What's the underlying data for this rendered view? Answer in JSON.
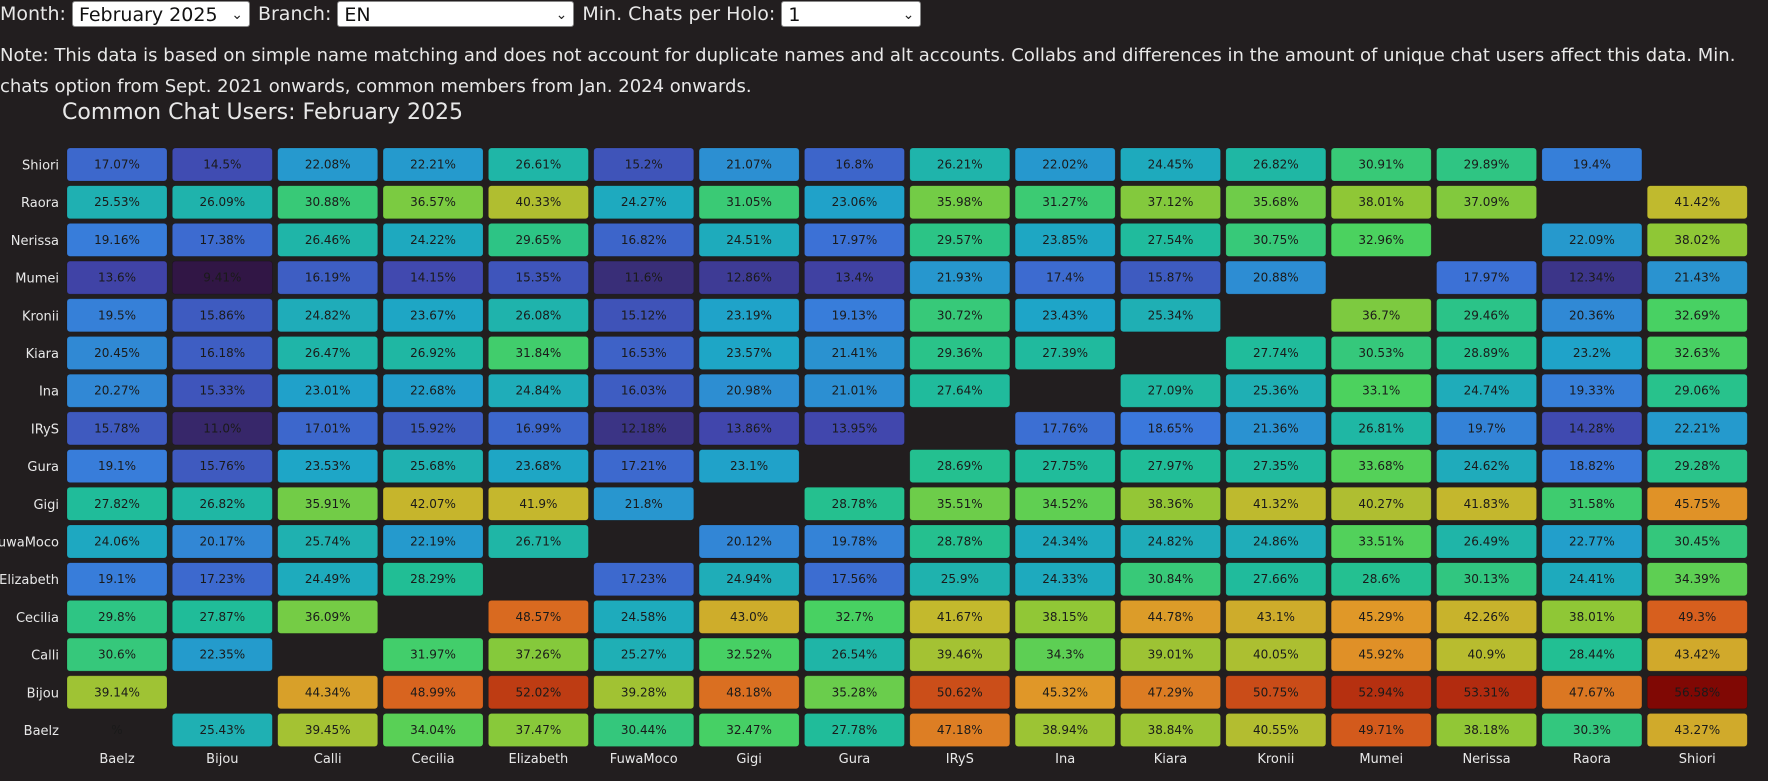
{
  "controls": {
    "month_label": "Month:",
    "month_value": "February 2025",
    "branch_label": "Branch:",
    "branch_value": "EN",
    "min_chats_label": "Min. Chats per Holo:",
    "min_chats_value": "1",
    "chevron_icon": "chevron-down-icon"
  },
  "note": "Note: This data is based on simple name matching and does not account for duplicate names and alt accounts. Collabs and differences in the amount of unique chat users affect this data. Min. chats option from Sept. 2021 onwards, common members from Jan. 2024 onwards.",
  "chart_data": {
    "type": "heatmap",
    "title": "Common Chat Users: February 2025",
    "x_categories": [
      "Baelz",
      "Bijou",
      "Calli",
      "Cecilia",
      "Elizabeth",
      "FuwaMoco",
      "Gigi",
      "Gura",
      "IRyS",
      "Ina",
      "Kiara",
      "Kronii",
      "Mumei",
      "Nerissa",
      "Raora",
      "Shiori"
    ],
    "y_categories": [
      "Shiori",
      "Raora",
      "Nerissa",
      "Mumei",
      "Kronii",
      "Kiara",
      "Ina",
      "IRyS",
      "Gura",
      "Gigi",
      "FuwaMoco",
      "Elizabeth",
      "Cecilia",
      "Calli",
      "Bijou",
      "Baelz"
    ],
    "values": [
      [
        17.07,
        14.5,
        22.08,
        22.21,
        26.61,
        15.2,
        21.07,
        16.8,
        26.21,
        22.02,
        24.45,
        26.82,
        30.91,
        29.89,
        19.4,
        null
      ],
      [
        25.53,
        26.09,
        30.88,
        36.57,
        40.33,
        24.27,
        31.05,
        23.06,
        35.98,
        31.27,
        37.12,
        35.68,
        38.01,
        37.09,
        null,
        41.42
      ],
      [
        19.16,
        17.38,
        26.46,
        24.22,
        29.65,
        16.82,
        24.51,
        17.97,
        29.57,
        23.85,
        27.54,
        30.75,
        32.96,
        null,
        22.09,
        38.02
      ],
      [
        13.6,
        9.41,
        16.19,
        14.15,
        15.35,
        11.6,
        12.86,
        13.4,
        21.93,
        17.4,
        15.87,
        20.88,
        null,
        17.97,
        12.34,
        21.43
      ],
      [
        19.5,
        15.86,
        24.82,
        23.67,
        26.08,
        15.12,
        23.19,
        19.13,
        30.72,
        23.43,
        25.34,
        null,
        36.7,
        29.46,
        20.36,
        32.69
      ],
      [
        20.45,
        16.18,
        26.47,
        26.92,
        31.84,
        16.53,
        23.57,
        21.41,
        29.36,
        27.39,
        null,
        27.74,
        30.53,
        28.89,
        23.2,
        32.63
      ],
      [
        20.27,
        15.33,
        23.01,
        22.68,
        24.84,
        16.03,
        20.98,
        21.01,
        27.64,
        null,
        27.09,
        25.36,
        33.1,
        24.74,
        19.33,
        29.06
      ],
      [
        15.78,
        11.0,
        17.01,
        15.92,
        16.99,
        12.18,
        13.86,
        13.95,
        null,
        17.76,
        18.65,
        21.36,
        26.81,
        19.7,
        14.28,
        22.21
      ],
      [
        19.1,
        15.76,
        23.53,
        25.68,
        23.68,
        17.21,
        23.1,
        null,
        28.69,
        27.75,
        27.97,
        27.35,
        33.68,
        24.62,
        18.82,
        29.28
      ],
      [
        27.82,
        26.82,
        35.91,
        42.07,
        41.9,
        21.8,
        null,
        28.78,
        35.51,
        34.52,
        38.36,
        41.32,
        40.27,
        41.83,
        31.58,
        45.75
      ],
      [
        24.06,
        20.17,
        25.74,
        22.19,
        26.71,
        null,
        20.12,
        19.78,
        28.78,
        24.34,
        24.82,
        24.86,
        33.51,
        26.49,
        22.77,
        30.45
      ],
      [
        19.1,
        17.23,
        24.49,
        28.29,
        null,
        17.23,
        24.94,
        17.56,
        25.9,
        24.33,
        30.84,
        27.66,
        28.6,
        30.13,
        24.41,
        34.39
      ],
      [
        29.8,
        27.87,
        36.09,
        null,
        48.57,
        24.58,
        43.0,
        32.7,
        41.67,
        38.15,
        44.78,
        43.1,
        45.29,
        42.26,
        38.01,
        49.3
      ],
      [
        30.6,
        22.35,
        null,
        31.97,
        37.26,
        25.27,
        32.52,
        26.54,
        39.46,
        34.3,
        39.01,
        40.05,
        45.92,
        40.9,
        28.44,
        43.42
      ],
      [
        39.14,
        null,
        44.34,
        48.99,
        52.02,
        39.28,
        48.18,
        35.28,
        50.62,
        45.32,
        47.29,
        50.75,
        52.94,
        53.31,
        47.67,
        56.58
      ],
      [
        null,
        25.43,
        39.45,
        34.04,
        37.47,
        30.44,
        32.47,
        27.78,
        47.18,
        38.94,
        38.84,
        40.55,
        49.71,
        38.18,
        30.3,
        43.27
      ]
    ],
    "labels": [
      [
        "17.07%",
        "14.5%",
        "22.08%",
        "22.21%",
        "26.61%",
        "15.2%",
        "21.07%",
        "16.8%",
        "26.21%",
        "22.02%",
        "24.45%",
        "26.82%",
        "30.91%",
        "29.89%",
        "19.4%",
        ""
      ],
      [
        "25.53%",
        "26.09%",
        "30.88%",
        "36.57%",
        "40.33%",
        "24.27%",
        "31.05%",
        "23.06%",
        "35.98%",
        "31.27%",
        "37.12%",
        "35.68%",
        "38.01%",
        "37.09%",
        "",
        "41.42%"
      ],
      [
        "19.16%",
        "17.38%",
        "26.46%",
        "24.22%",
        "29.65%",
        "16.82%",
        "24.51%",
        "17.97%",
        "29.57%",
        "23.85%",
        "27.54%",
        "30.75%",
        "32.96%",
        "",
        "22.09%",
        "38.02%"
      ],
      [
        "13.6%",
        "9.41%",
        "16.19%",
        "14.15%",
        "15.35%",
        "11.6%",
        "12.86%",
        "13.4%",
        "21.93%",
        "17.4%",
        "15.87%",
        "20.88%",
        "",
        "17.97%",
        "12.34%",
        "21.43%"
      ],
      [
        "19.5%",
        "15.86%",
        "24.82%",
        "23.67%",
        "26.08%",
        "15.12%",
        "23.19%",
        "19.13%",
        "30.72%",
        "23.43%",
        "25.34%",
        "",
        "36.7%",
        "29.46%",
        "20.36%",
        "32.69%"
      ],
      [
        "20.45%",
        "16.18%",
        "26.47%",
        "26.92%",
        "31.84%",
        "16.53%",
        "23.57%",
        "21.41%",
        "29.36%",
        "27.39%",
        "",
        "27.74%",
        "30.53%",
        "28.89%",
        "23.2%",
        "32.63%"
      ],
      [
        "20.27%",
        "15.33%",
        "23.01%",
        "22.68%",
        "24.84%",
        "16.03%",
        "20.98%",
        "21.01%",
        "27.64%",
        "",
        "27.09%",
        "25.36%",
        "33.1%",
        "24.74%",
        "19.33%",
        "29.06%"
      ],
      [
        "15.78%",
        "11.0%",
        "17.01%",
        "15.92%",
        "16.99%",
        "12.18%",
        "13.86%",
        "13.95%",
        "",
        "17.76%",
        "18.65%",
        "21.36%",
        "26.81%",
        "19.7%",
        "14.28%",
        "22.21%"
      ],
      [
        "19.1%",
        "15.76%",
        "23.53%",
        "25.68%",
        "23.68%",
        "17.21%",
        "23.1%",
        "",
        "28.69%",
        "27.75%",
        "27.97%",
        "27.35%",
        "33.68%",
        "24.62%",
        "18.82%",
        "29.28%"
      ],
      [
        "27.82%",
        "26.82%",
        "35.91%",
        "42.07%",
        "41.9%",
        "21.8%",
        "",
        "28.78%",
        "35.51%",
        "34.52%",
        "38.36%",
        "41.32%",
        "40.27%",
        "41.83%",
        "31.58%",
        "45.75%"
      ],
      [
        "24.06%",
        "20.17%",
        "25.74%",
        "22.19%",
        "26.71%",
        "",
        "20.12%",
        "19.78%",
        "28.78%",
        "24.34%",
        "24.82%",
        "24.86%",
        "33.51%",
        "26.49%",
        "22.77%",
        "30.45%"
      ],
      [
        "19.1%",
        "17.23%",
        "24.49%",
        "28.29%",
        "",
        "17.23%",
        "24.94%",
        "17.56%",
        "25.9%",
        "24.33%",
        "30.84%",
        "27.66%",
        "28.6%",
        "30.13%",
        "24.41%",
        "34.39%"
      ],
      [
        "29.8%",
        "27.87%",
        "36.09%",
        "",
        "48.57%",
        "24.58%",
        "43.0%",
        "32.7%",
        "41.67%",
        "38.15%",
        "44.78%",
        "43.1%",
        "45.29%",
        "42.26%",
        "38.01%",
        "49.3%"
      ],
      [
        "30.6%",
        "22.35%",
        "",
        "31.97%",
        "37.26%",
        "25.27%",
        "32.52%",
        "26.54%",
        "39.46%",
        "34.3%",
        "39.01%",
        "40.05%",
        "45.92%",
        "40.9%",
        "28.44%",
        "43.42%"
      ],
      [
        "39.14%",
        "",
        "44.34%",
        "48.99%",
        "52.02%",
        "39.28%",
        "48.18%",
        "35.28%",
        "50.62%",
        "45.32%",
        "47.29%",
        "50.75%",
        "52.94%",
        "53.31%",
        "47.67%",
        "56.58%"
      ],
      [
        "%",
        "25.43%",
        "39.45%",
        "34.04%",
        "37.47%",
        "30.44%",
        "32.47%",
        "27.78%",
        "47.18%",
        "38.94%",
        "38.84%",
        "40.55%",
        "49.71%",
        "38.18%",
        "30.3%",
        "43.27%"
      ]
    ],
    "colorscale": "turbo",
    "color_range": [
      9,
      57
    ],
    "empty_cell_color": "#221e1f"
  }
}
